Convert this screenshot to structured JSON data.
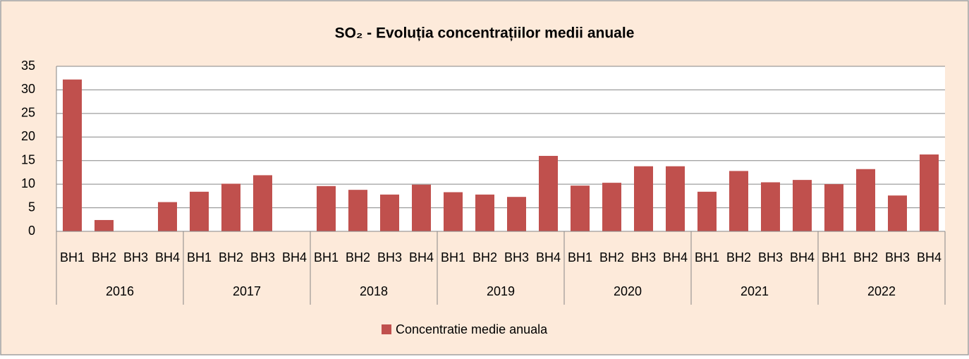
{
  "chart_data": {
    "type": "bar",
    "title": "SO₂ - Evoluția concentrațiilor medii anuale",
    "categories": [
      "BH1",
      "BH2",
      "BH3",
      "BH4",
      "BH1",
      "BH2",
      "BH3",
      "BH4",
      "BH1",
      "BH2",
      "BH3",
      "BH4",
      "BH1",
      "BH2",
      "BH3",
      "BH4",
      "BH1",
      "BH2",
      "BH3",
      "BH4",
      "BH1",
      "BH2",
      "BH3",
      "BH4",
      "BH1",
      "BH2",
      "BH3",
      "BH4"
    ],
    "groups": [
      "2016",
      "2017",
      "2018",
      "2019",
      "2020",
      "2021",
      "2022"
    ],
    "series": [
      {
        "name": "Concentratie medie anuala",
        "color": "#c0504d",
        "values": [
          32.2,
          2.4,
          null,
          6.2,
          8.4,
          10.1,
          11.9,
          null,
          9.6,
          8.8,
          7.8,
          9.9,
          8.3,
          7.8,
          7.3,
          16.0,
          9.7,
          10.3,
          13.8,
          13.8,
          8.4,
          12.8,
          10.4,
          10.9,
          10.0,
          13.2,
          7.6,
          16.3
        ]
      }
    ],
    "ylim": [
      0,
      35
    ],
    "yticks": [
      0,
      5,
      10,
      15,
      20,
      25,
      30,
      35
    ],
    "grid": true,
    "legend": "bottom"
  }
}
